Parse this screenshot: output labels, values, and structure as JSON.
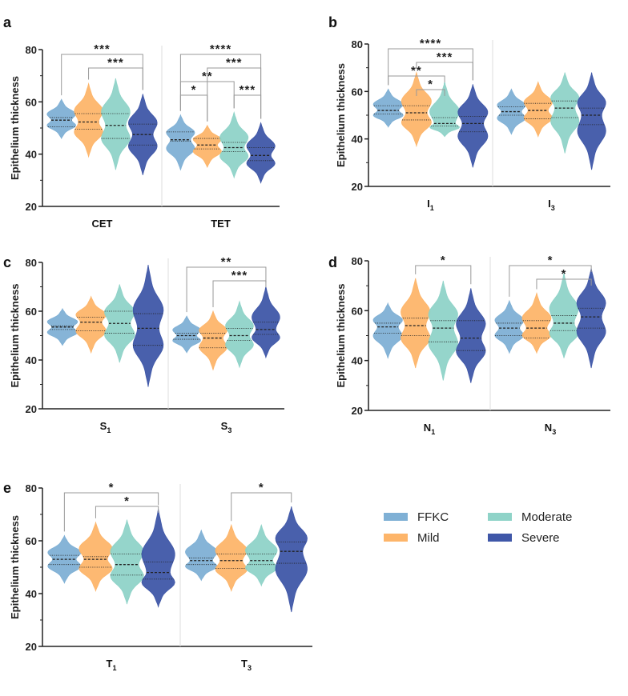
{
  "chart_data": {
    "type": "violin",
    "ylabel": "Epithelium thickness",
    "ylim": [
      20,
      80
    ],
    "yticks": [
      20,
      40,
      60,
      80
    ],
    "legend": {
      "placement": "bottom-right",
      "entries": [
        {
          "name": "FFKC",
          "color": "#7fb0d5"
        },
        {
          "name": "Mild",
          "color": "#fdb56a"
        },
        {
          "name": "Moderate",
          "color": "#8fd3c8"
        },
        {
          "name": "Severe",
          "color": "#3f57a8"
        }
      ]
    },
    "panels": [
      {
        "label": "a",
        "groups": [
          {
            "name": "CET",
            "sub": "",
            "violins": [
              [
                46,
                61,
                50.5,
                53,
                54
              ],
              [
                39,
                67,
                49.5,
                52.3,
                55.5
              ],
              [
                34,
                69,
                46,
                51,
                55.5
              ],
              [
                32,
                63,
                43.5,
                47.5,
                51.5
              ]
            ],
            "brackets": [
              {
                "from": 2,
                "to": 4,
                "stars": "***"
              },
              {
                "from": 1,
                "to": 4,
                "stars": "***"
              }
            ]
          },
          {
            "name": "TET",
            "sub": "",
            "violins": [
              [
                34,
                55,
                45,
                45.5,
                48.5
              ],
              [
                35,
                51,
                42,
                43.5,
                46
              ],
              [
                31,
                56,
                41,
                42.5,
                44.5
              ],
              [
                29,
                52,
                37.5,
                39.5,
                42.5
              ]
            ],
            "brackets": [
              {
                "from": 1,
                "to": 2,
                "stars": "*"
              },
              {
                "from": 3,
                "to": 4,
                "stars": "***"
              },
              {
                "from": 1,
                "to": 3,
                "stars": "**"
              },
              {
                "from": 2,
                "to": 4,
                "stars": "***"
              },
              {
                "from": 1,
                "to": 4,
                "stars": "****"
              }
            ]
          }
        ]
      },
      {
        "label": "b",
        "groups": [
          {
            "name": "I",
            "sub": "1",
            "violins": [
              [
                45,
                61,
                50.5,
                52,
                54
              ],
              [
                37,
                68,
                48,
                51,
                54
              ],
              [
                41,
                64,
                45.5,
                46.5,
                49
              ],
              [
                28,
                63,
                43,
                46.5,
                49.5
              ]
            ],
            "brackets": [
              {
                "from": 2,
                "to": 3,
                "stars": "*"
              },
              {
                "from": 1,
                "to": 3,
                "stars": "**"
              },
              {
                "from": 2,
                "to": 4,
                "stars": "***"
              },
              {
                "from": 1,
                "to": 4,
                "stars": "****"
              }
            ]
          },
          {
            "name": "I",
            "sub": "3",
            "violins": [
              [
                42,
                61,
                50,
                51.5,
                53.5
              ],
              [
                41,
                64,
                48.5,
                52,
                55
              ],
              [
                34,
                68,
                49,
                53,
                56
              ],
              [
                27,
                68,
                46,
                50,
                53
              ]
            ],
            "brackets": []
          }
        ]
      },
      {
        "label": "c",
        "groups": [
          {
            "name": "S",
            "sub": "1",
            "violins": [
              [
                46,
                61,
                52.5,
                53.5,
                54
              ],
              [
                43,
                66,
                52,
                55.5,
                57.5
              ],
              [
                39,
                71,
                51,
                55,
                60
              ],
              [
                29,
                79,
                46,
                53,
                59
              ]
            ],
            "brackets": []
          },
          {
            "name": "S",
            "sub": "3",
            "violins": [
              [
                43,
                58,
                48.5,
                50,
                51
              ],
              [
                36,
                60,
                45,
                49,
                51
              ],
              [
                37,
                64,
                48,
                50,
                53
              ],
              [
                41,
                70,
                50.5,
                52.5,
                55.5
              ]
            ],
            "brackets": [
              {
                "from": 2,
                "to": 4,
                "stars": "***"
              },
              {
                "from": 1,
                "to": 4,
                "stars": "**"
              }
            ]
          }
        ]
      },
      {
        "label": "d",
        "groups": [
          {
            "name": "N",
            "sub": "1",
            "violins": [
              [
                41,
                63,
                51,
                53.5,
                55
              ],
              [
                37,
                73,
                50,
                54,
                57
              ],
              [
                32,
                72,
                47.5,
                53,
                56
              ],
              [
                31,
                69,
                44,
                49,
                56
              ]
            ],
            "brackets": [
              {
                "from": 2,
                "to": 4,
                "stars": "*"
              }
            ]
          },
          {
            "name": "N",
            "sub": "3",
            "violins": [
              [
                43,
                64,
                50,
                53,
                55
              ],
              [
                43,
                67,
                49,
                53,
                56
              ],
              [
                41,
                75,
                52,
                55,
                58
              ],
              [
                37,
                77,
                53,
                57.5,
                61
              ]
            ],
            "brackets": [
              {
                "from": 2,
                "to": 4,
                "stars": "*"
              },
              {
                "from": 1,
                "to": 4,
                "stars": "*"
              }
            ]
          }
        ]
      },
      {
        "label": "e",
        "groups": [
          {
            "name": "T",
            "sub": "1",
            "violins": [
              [
                44,
                62,
                51,
                53,
                54.5
              ],
              [
                41,
                67,
                50,
                53,
                54
              ],
              [
                36,
                68,
                47,
                51,
                55
              ],
              [
                35,
                72,
                45.5,
                48,
                52
              ]
            ],
            "brackets": [
              {
                "from": 2,
                "to": 4,
                "stars": "*"
              },
              {
                "from": 1,
                "to": 4,
                "stars": "*"
              }
            ]
          },
          {
            "name": "T",
            "sub": "3",
            "violins": [
              [
                45,
                64,
                51,
                52.5,
                53.5
              ],
              [
                41,
                66,
                49.5,
                52.5,
                55
              ],
              [
                43,
                66,
                51,
                52.5,
                55
              ],
              [
                33,
                73,
                51.5,
                56,
                59.5
              ]
            ],
            "brackets": [
              {
                "from": 2,
                "to": 4,
                "stars": "*"
              }
            ]
          }
        ]
      }
    ]
  }
}
